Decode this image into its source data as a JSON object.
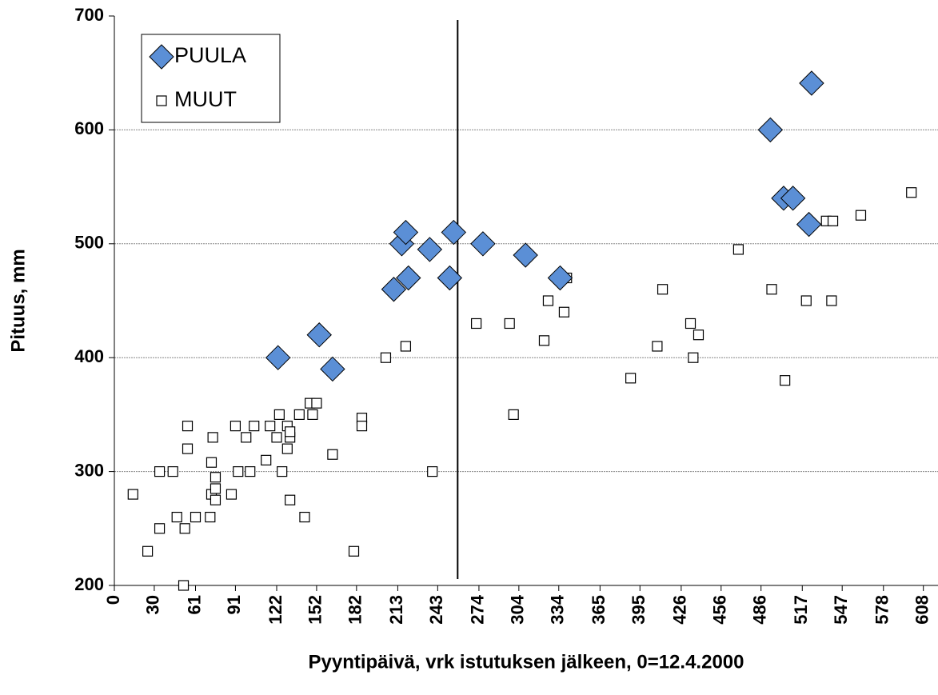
{
  "chart_data": {
    "type": "scatter",
    "x_label": "Pyyntipäivä, vrk istutuksen jälkeen, 0=12.4.2000",
    "y_label": "Pituus, mm",
    "xlim": [
      0,
      619
    ],
    "ylim": [
      200,
      700
    ],
    "xticks": [
      0,
      30,
      61,
      91,
      122,
      152,
      182,
      213,
      243,
      274,
      304,
      334,
      365,
      395,
      426,
      456,
      486,
      517,
      547,
      578,
      608
    ],
    "yticks": [
      200,
      300,
      400,
      500,
      600,
      700
    ],
    "grid": true,
    "legend": "upper-left",
    "vline": 258,
    "series": [
      {
        "name": "PUULA",
        "color": "#5b8fd6",
        "marker": "diamond",
        "x": [
          123,
          154,
          164,
          210,
          216,
          219,
          221,
          237,
          252,
          255,
          277,
          309,
          335,
          493,
          503,
          510,
          522,
          524
        ],
        "values": [
          400,
          420,
          390,
          460,
          500,
          510,
          470,
          495,
          470,
          510,
          500,
          490,
          470,
          600,
          540,
          540,
          517,
          641
        ]
      },
      {
        "name": "MUUT",
        "color": "#ffffff",
        "marker": "square",
        "x": [
          14,
          25,
          34,
          34,
          44,
          47,
          52,
          53,
          55,
          55,
          61,
          72,
          73,
          73,
          74,
          76,
          76,
          76,
          88,
          91,
          93,
          99,
          102,
          105,
          114,
          117,
          124,
          122,
          126,
          130,
          130,
          132,
          132,
          132,
          139,
          143,
          147,
          149,
          152,
          164,
          180,
          186,
          186,
          204,
          219,
          239,
          272,
          297,
          300,
          323,
          326,
          338,
          340,
          388,
          408,
          412,
          433,
          435,
          439,
          469,
          494,
          504,
          520,
          535,
          540,
          539,
          561,
          599
        ],
        "values": [
          280,
          230,
          300,
          250,
          300,
          260,
          200,
          250,
          340,
          320,
          260,
          260,
          308,
          280,
          330,
          295,
          285,
          275,
          280,
          340,
          300,
          330,
          300,
          340,
          310,
          340,
          350,
          330,
          300,
          340,
          320,
          330,
          335,
          275,
          350,
          260,
          360,
          350,
          360,
          315,
          230,
          347,
          340,
          400,
          410,
          300,
          430,
          430,
          350,
          415,
          450,
          440,
          470,
          382,
          410,
          460,
          430,
          400,
          420,
          495,
          460,
          380,
          450,
          520,
          520,
          450,
          525,
          545
        ]
      }
    ]
  }
}
